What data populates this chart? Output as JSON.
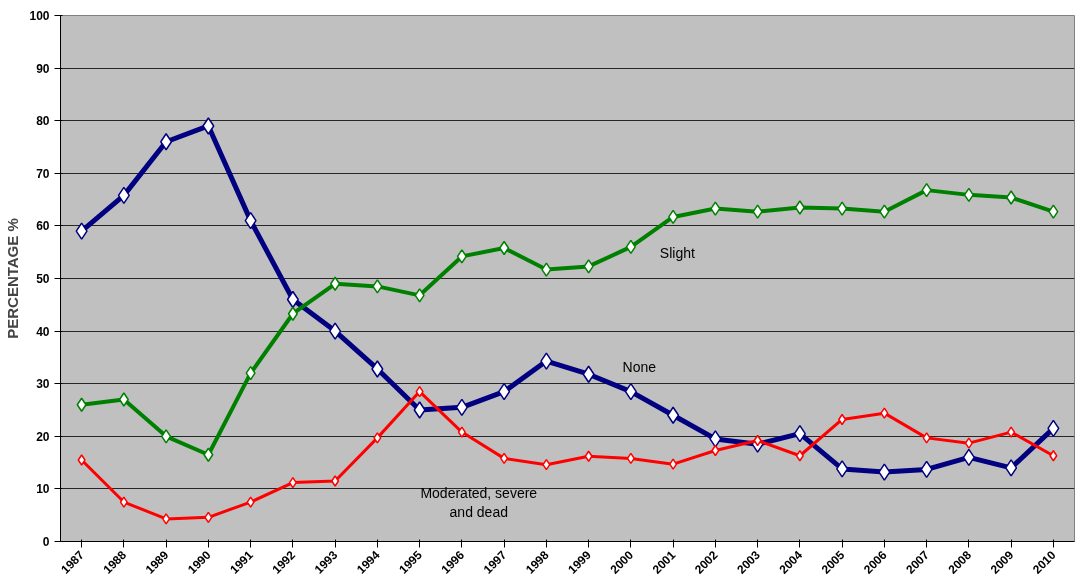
{
  "chart_data": {
    "type": "line",
    "ylabel": "PERCENTAGE %",
    "categories": [
      "1987",
      "1988",
      "1989",
      "1990",
      "1991",
      "1992",
      "1993",
      "1994",
      "1995",
      "1996",
      "1997",
      "1998",
      "1999",
      "2000",
      "2001",
      "2002",
      "2003",
      "2004",
      "2005",
      "2006",
      "2007",
      "2008",
      "2009",
      "2010"
    ],
    "series": [
      {
        "name": "None",
        "color": "#000080",
        "values": [
          59,
          65.8,
          76,
          79,
          61,
          46,
          40,
          32.8,
          25,
          25.5,
          28.5,
          34.3,
          31.8,
          28.5,
          24,
          19.5,
          18.5,
          20.5,
          13.8,
          13.2,
          13.7,
          16,
          14,
          21.5
        ]
      },
      {
        "name": "Slight",
        "color": "#008000",
        "values": [
          26,
          27,
          20,
          16.5,
          32,
          43.3,
          49,
          48.5,
          46.8,
          54.2,
          55.8,
          51.7,
          52.3,
          56,
          61.7,
          63.3,
          62.7,
          63.5,
          63.3,
          62.7,
          66.8,
          65.9,
          65.4,
          62.7
        ]
      },
      {
        "name": "Moderated, severe\nand dead",
        "color": "#ff0000",
        "values": [
          15.5,
          7.5,
          4.3,
          4.6,
          7.5,
          11.2,
          11.5,
          19.7,
          28.5,
          20.8,
          15.8,
          14.6,
          16.2,
          15.8,
          14.7,
          17.3,
          19.2,
          16.3,
          23.2,
          24.4,
          19.7,
          18.7,
          20.8,
          16.3
        ]
      }
    ],
    "ylim": [
      0,
      100
    ],
    "yticks": [
      0,
      10,
      20,
      30,
      40,
      50,
      60,
      70,
      80,
      90,
      100
    ],
    "grid": "y",
    "marker": "diamond",
    "line_style": "solid"
  }
}
